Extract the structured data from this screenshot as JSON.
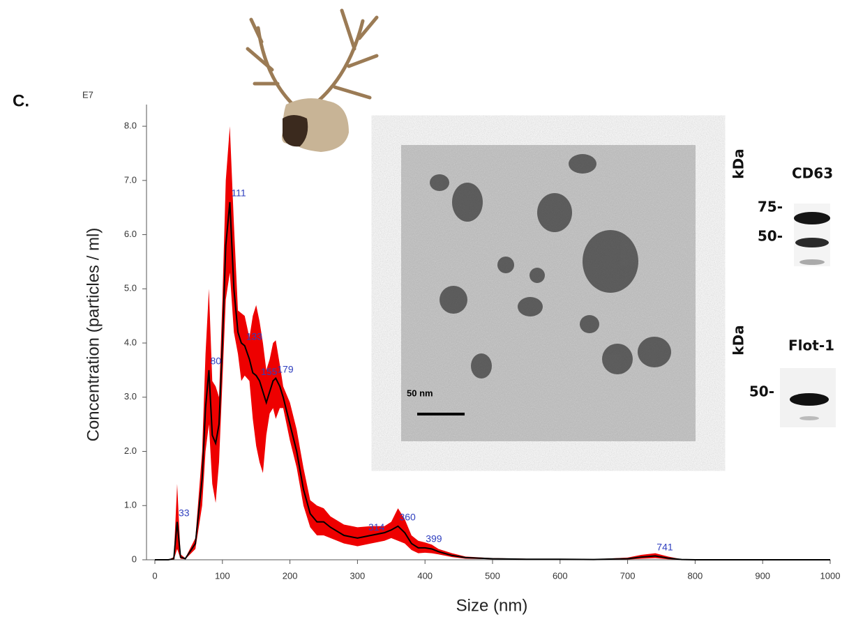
{
  "panel_label": "C.",
  "scale_bar": "50 nm",
  "blots": [
    {
      "unit": "kDa",
      "name": "CD63",
      "markers": [
        "75-",
        "50-"
      ]
    },
    {
      "unit": "kDa",
      "name": "Flot-1",
      "markers": [
        "50-"
      ]
    }
  ],
  "chart_data": {
    "type": "line",
    "xlabel": "Size (nm)",
    "ylabel": "Concentration (particles / ml)",
    "y_multiplier": "E7",
    "xlim": [
      0,
      1000
    ],
    "ylim": [
      0,
      8.4
    ],
    "xticks": [
      0,
      100,
      200,
      300,
      400,
      500,
      600,
      700,
      800,
      900,
      1000
    ],
    "yticks": [
      0,
      {
        "value": 1,
        "label": "1.0"
      },
      {
        "value": 2,
        "label": "2.0"
      },
      {
        "value": 3,
        "label": "3.0"
      },
      {
        "value": 4,
        "label": "4.0"
      },
      {
        "value": 5,
        "label": "5.0"
      },
      {
        "value": 6,
        "label": "6.0"
      },
      {
        "value": 7,
        "label": "7.0"
      },
      {
        "value": 8,
        "label": "8.0"
      }
    ],
    "x": [
      0,
      20,
      28,
      33,
      38,
      45,
      60,
      70,
      75,
      80,
      85,
      90,
      95,
      100,
      105,
      111,
      117,
      123,
      128,
      133,
      140,
      145,
      150,
      155,
      160,
      165,
      170,
      175,
      179,
      185,
      190,
      200,
      210,
      220,
      230,
      240,
      250,
      260,
      280,
      300,
      320,
      340,
      350,
      360,
      370,
      380,
      390,
      400,
      410,
      420,
      440,
      460,
      500,
      550,
      600,
      650,
      700,
      720,
      741,
      760,
      780,
      800,
      900,
      1000
    ],
    "series": [
      {
        "color": "#000000",
        "values": [
          0,
          0,
          0.02,
          0.7,
          0.05,
          0.02,
          0.3,
          1.5,
          2.8,
          3.5,
          2.3,
          2.15,
          2.5,
          4.0,
          5.8,
          6.6,
          5.0,
          4.2,
          4.0,
          3.95,
          3.7,
          3.45,
          3.4,
          3.3,
          3.1,
          2.9,
          3.1,
          3.3,
          3.35,
          3.2,
          3.0,
          2.5,
          2.0,
          1.3,
          0.85,
          0.7,
          0.7,
          0.6,
          0.45,
          0.4,
          0.45,
          0.5,
          0.55,
          0.62,
          0.5,
          0.3,
          0.22,
          0.22,
          0.2,
          0.15,
          0.08,
          0.04,
          0.02,
          0.01,
          0.01,
          0.005,
          0.02,
          0.05,
          0.07,
          0.03,
          0.005,
          0,
          0,
          0
        ]
      }
    ],
    "band": {
      "color": "#ee0000",
      "upper": [
        0,
        0,
        0.05,
        1.4,
        0.1,
        0.03,
        0.4,
        2.0,
        3.8,
        5.0,
        3.3,
        3.2,
        3.0,
        4.8,
        7.0,
        8.0,
        6.2,
        4.6,
        4.55,
        4.5,
        4.1,
        4.5,
        4.7,
        4.4,
        4.0,
        3.5,
        3.7,
        4.0,
        4.05,
        3.6,
        3.2,
        2.9,
        2.4,
        1.7,
        1.1,
        1.0,
        0.95,
        0.8,
        0.65,
        0.6,
        0.62,
        0.62,
        0.7,
        0.95,
        0.75,
        0.45,
        0.35,
        0.32,
        0.28,
        0.2,
        0.12,
        0.06,
        0.03,
        0.02,
        0.015,
        0.01,
        0.04,
        0.09,
        0.12,
        0.06,
        0.01,
        0,
        0,
        0
      ],
      "lower": [
        0,
        0,
        0,
        0.2,
        0.02,
        0.01,
        0.2,
        1.0,
        2.0,
        2.5,
        1.4,
        1.05,
        1.8,
        3.3,
        4.8,
        5.3,
        4.2,
        3.8,
        3.3,
        3.4,
        3.3,
        2.6,
        2.1,
        1.8,
        1.6,
        2.3,
        2.7,
        2.8,
        2.6,
        2.8,
        2.8,
        2.2,
        1.7,
        1.0,
        0.6,
        0.45,
        0.45,
        0.4,
        0.3,
        0.25,
        0.3,
        0.35,
        0.4,
        0.35,
        0.3,
        0.18,
        0.12,
        0.13,
        0.12,
        0.1,
        0.05,
        0.02,
        0.01,
        0.005,
        0.005,
        0.002,
        0.005,
        0.02,
        0.03,
        0.01,
        0,
        0,
        0,
        0
      ]
    },
    "peak_labels": [
      33,
      80,
      111,
      133,
      155,
      179,
      314,
      360,
      399,
      741
    ]
  }
}
